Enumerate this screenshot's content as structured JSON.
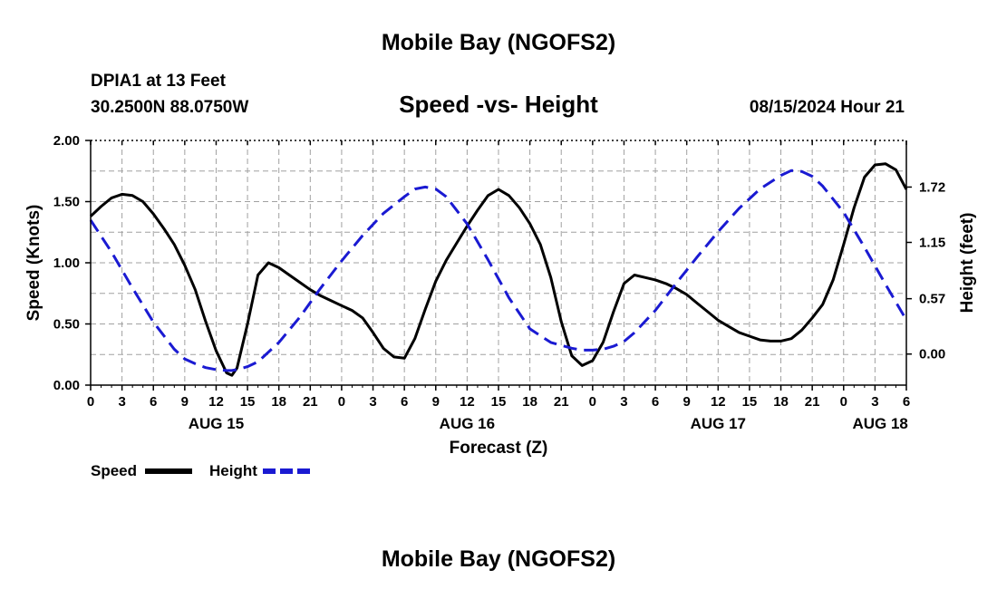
{
  "header": {
    "title": "Mobile Bay (NGOFS2)",
    "station": "DPIA1 at 13 Feet",
    "coordinates": "30.2500N  88.0750W",
    "subtitle": "Speed -vs- Height",
    "forecast_time": "08/15/2024 Hour 21"
  },
  "footer": {
    "title": "Mobile Bay (NGOFS2)"
  },
  "legend": {
    "speed_label": "Speed",
    "height_label": "Height"
  },
  "colors": {
    "speed": "#000000",
    "height": "#1a1ad2",
    "grid": "#a0a0a0"
  },
  "chart_data": {
    "type": "line",
    "title": "Speed -vs- Height",
    "xlabel": "Forecast (Z)",
    "ylabel": "Speed (Knots)",
    "y2label": "Height (feet)",
    "x_unit": "hours since AUG 15 00Z",
    "xlim": [
      0,
      78
    ],
    "ylim": [
      0,
      2.0
    ],
    "y2lim": [
      -0.32,
      2.2
    ],
    "x_tick_values": [
      0,
      3,
      6,
      9,
      12,
      15,
      18,
      21,
      24,
      27,
      30,
      33,
      36,
      39,
      42,
      45,
      48,
      51,
      54,
      57,
      60,
      63,
      66,
      69,
      72,
      75,
      78
    ],
    "x_tick_labels": [
      "0",
      "3",
      "6",
      "9",
      "12",
      "15",
      "18",
      "21",
      "0",
      "3",
      "6",
      "9",
      "12",
      "15",
      "18",
      "21",
      "0",
      "3",
      "6",
      "9",
      "12",
      "15",
      "18",
      "21",
      "0",
      "3",
      "6"
    ],
    "date_labels": [
      {
        "label": "AUG 15",
        "x": 12
      },
      {
        "label": "AUG 16",
        "x": 36
      },
      {
        "label": "AUG 17",
        "x": 60
      },
      {
        "label": "AUG 18",
        "x": 75.5
      }
    ],
    "y_tick_values": [
      0,
      0.5,
      1.0,
      1.5,
      2.0
    ],
    "y_tick_labels": [
      "0.00",
      "0.50",
      "1.00",
      "1.50",
      "2.00"
    ],
    "y2_tick_values": [
      0,
      0.57,
      1.15,
      1.72
    ],
    "y2_tick_labels": [
      "0.00",
      "0.57",
      "1.15",
      "1.72"
    ],
    "grid": true,
    "legend_position": "bottom-left",
    "series": [
      {
        "name": "Speed",
        "axis": "left",
        "style": "solid",
        "x": [
          0,
          1,
          2,
          3,
          4,
          5,
          6,
          7,
          8,
          9,
          10,
          11,
          12,
          13,
          13.5,
          14,
          15,
          16,
          17,
          18,
          19,
          20,
          21,
          22,
          23,
          24,
          25,
          26,
          27,
          28,
          29,
          30,
          31,
          32,
          33,
          34,
          35,
          36,
          37,
          38,
          39,
          40,
          41,
          42,
          43,
          44,
          45,
          46,
          47,
          48,
          49,
          50,
          51,
          52,
          53,
          54,
          55,
          56,
          57,
          58,
          59,
          60,
          61,
          62,
          63,
          64,
          65,
          66,
          67,
          68,
          69,
          70,
          71,
          72,
          73,
          74,
          75,
          76,
          77,
          78
        ],
        "values": [
          1.38,
          1.46,
          1.53,
          1.56,
          1.55,
          1.5,
          1.4,
          1.28,
          1.15,
          0.98,
          0.78,
          0.52,
          0.28,
          0.1,
          0.08,
          0.14,
          0.5,
          0.9,
          1.0,
          0.96,
          0.9,
          0.84,
          0.78,
          0.73,
          0.69,
          0.65,
          0.61,
          0.55,
          0.43,
          0.3,
          0.23,
          0.22,
          0.38,
          0.62,
          0.85,
          1.02,
          1.16,
          1.3,
          1.43,
          1.55,
          1.6,
          1.55,
          1.45,
          1.32,
          1.15,
          0.88,
          0.52,
          0.24,
          0.16,
          0.2,
          0.35,
          0.6,
          0.83,
          0.9,
          0.88,
          0.86,
          0.83,
          0.79,
          0.74,
          0.67,
          0.6,
          0.53,
          0.48,
          0.43,
          0.4,
          0.37,
          0.36,
          0.36,
          0.38,
          0.45,
          0.55,
          0.66,
          0.86,
          1.15,
          1.45,
          1.7,
          1.8,
          1.81,
          1.76,
          1.6
        ]
      },
      {
        "name": "Height",
        "axis": "right",
        "style": "dashed",
        "x": [
          0,
          2,
          4,
          6,
          8,
          9,
          10,
          11,
          12,
          13,
          13.5,
          14,
          15,
          16,
          18,
          20,
          22,
          24,
          26,
          28,
          30,
          31,
          32,
          33,
          34,
          36,
          38,
          40,
          42,
          44,
          46,
          47,
          48,
          49,
          50,
          51,
          52,
          54,
          56,
          58,
          60,
          62,
          64,
          66,
          67,
          68,
          69,
          70,
          72,
          74,
          76,
          78
        ],
        "values": [
          1.38,
          1.05,
          0.68,
          0.33,
          0.05,
          -0.05,
          -0.1,
          -0.14,
          -0.16,
          -0.17,
          -0.17,
          -0.16,
          -0.13,
          -0.08,
          0.12,
          0.38,
          0.68,
          0.96,
          1.22,
          1.45,
          1.62,
          1.7,
          1.72,
          1.7,
          1.62,
          1.34,
          0.97,
          0.58,
          0.26,
          0.12,
          0.06,
          0.04,
          0.04,
          0.05,
          0.08,
          0.13,
          0.22,
          0.45,
          0.73,
          1.0,
          1.26,
          1.5,
          1.7,
          1.84,
          1.89,
          1.88,
          1.83,
          1.73,
          1.46,
          1.1,
          0.72,
          0.35
        ]
      }
    ]
  }
}
